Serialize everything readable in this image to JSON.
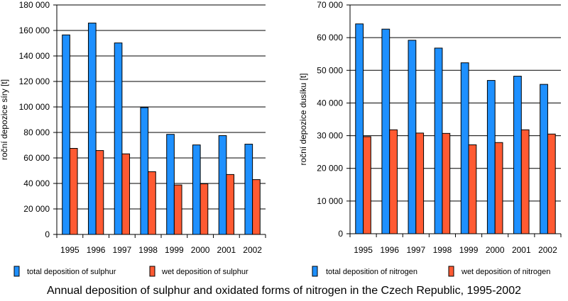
{
  "caption": "Annual deposition of sulphur and oxidated forms of nitrogen in the Czech Republic, 1995-2002",
  "colors": {
    "total": "#1e90ff",
    "wet": "#ff5a32",
    "gridline": "#000000"
  },
  "chart_data": [
    {
      "type": "bar",
      "ylabel": "roční depozice síry [t]",
      "categories": [
        "1995",
        "1996",
        "1997",
        "1998",
        "1999",
        "2000",
        "2001",
        "2002"
      ],
      "yticks": [
        "0",
        "20 000",
        "40 000",
        "60 000",
        "80 000",
        "100 000",
        "120 000",
        "140 000",
        "160 000",
        "180 000"
      ],
      "ylim": [
        0,
        180000
      ],
      "grid": true,
      "legend_position": "bottom",
      "series": [
        {
          "name": "total deposition of sulphur",
          "values": [
            156500,
            165800,
            150200,
            99500,
            78500,
            70200,
            77500,
            70800
          ]
        },
        {
          "name": "wet deposition of sulphur",
          "values": [
            67500,
            65800,
            63200,
            49200,
            38800,
            39700,
            47000,
            43000
          ]
        }
      ]
    },
    {
      "type": "bar",
      "ylabel": "roční depozice dusíku [t]",
      "categories": [
        "1995",
        "1996",
        "1997",
        "1998",
        "1999",
        "2000",
        "2001",
        "2002"
      ],
      "yticks": [
        "0",
        "10 000",
        "20 000",
        "30 000",
        "40 000",
        "50 000",
        "60 000",
        "70 000"
      ],
      "ylim": [
        0,
        70000
      ],
      "grid": true,
      "legend_position": "bottom",
      "series": [
        {
          "name": "total deposition of nitrogen",
          "values": [
            64200,
            62600,
            59200,
            56800,
            52300,
            46900,
            48200,
            45700
          ]
        },
        {
          "name": "wet deposition of nitrogen",
          "values": [
            29700,
            31800,
            30800,
            30700,
            27200,
            27900,
            31800,
            30500
          ]
        }
      ]
    }
  ]
}
